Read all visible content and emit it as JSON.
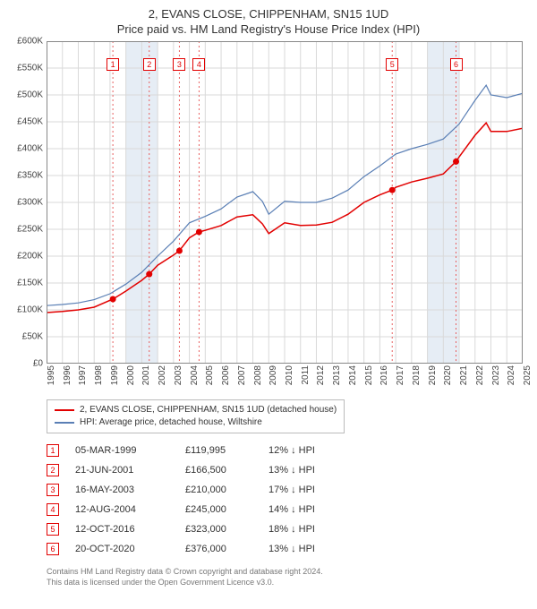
{
  "title_line1": "2, EVANS CLOSE, CHIPPENHAM, SN15 1UD",
  "title_line2": "Price paid vs. HM Land Registry's House Price Index (HPI)",
  "chart": {
    "type": "line",
    "x_min": 1995,
    "x_max": 2025,
    "y_min": 0,
    "y_max": 600000,
    "y_ticks": [
      0,
      50000,
      100000,
      150000,
      200000,
      250000,
      300000,
      350000,
      400000,
      450000,
      500000,
      550000,
      600000
    ],
    "y_tick_labels": [
      "£0",
      "£50K",
      "£100K",
      "£150K",
      "£200K",
      "£250K",
      "£300K",
      "£350K",
      "£400K",
      "£450K",
      "£500K",
      "£550K",
      "£600K"
    ],
    "x_ticks": [
      1995,
      1996,
      1997,
      1998,
      1999,
      2000,
      2001,
      2002,
      2003,
      2004,
      2005,
      2006,
      2007,
      2008,
      2009,
      2010,
      2011,
      2012,
      2013,
      2014,
      2015,
      2016,
      2017,
      2018,
      2019,
      2020,
      2021,
      2022,
      2023,
      2024,
      2025
    ],
    "background_color": "#ffffff",
    "grid_color": "#d9d9d9",
    "shaded_band_color": "#e6edf5",
    "shaded_bands": [
      [
        2000,
        2002
      ],
      [
        2019,
        2021
      ]
    ],
    "vline_color": "#e86060",
    "vline_dash": "2,3",
    "series_property": {
      "label": "2, EVANS CLOSE, CHIPPENHAM, SN15 1UD (detached house)",
      "color": "#e20000",
      "line_width": 1.5,
      "points": [
        [
          1995.0,
          95000
        ],
        [
          1996.0,
          97000
        ],
        [
          1997.0,
          100000
        ],
        [
          1998.0,
          105000
        ],
        [
          1999.18,
          119995
        ],
        [
          2000.0,
          135000
        ],
        [
          2001.0,
          155000
        ],
        [
          2001.47,
          166500
        ],
        [
          2002.0,
          183000
        ],
        [
          2003.0,
          202000
        ],
        [
          2003.37,
          210000
        ],
        [
          2004.0,
          234000
        ],
        [
          2004.61,
          245000
        ],
        [
          2005.0,
          248000
        ],
        [
          2006.0,
          257000
        ],
        [
          2007.0,
          273000
        ],
        [
          2008.0,
          277000
        ],
        [
          2008.6,
          260000
        ],
        [
          2009.0,
          242000
        ],
        [
          2010.0,
          262000
        ],
        [
          2011.0,
          257000
        ],
        [
          2012.0,
          258000
        ],
        [
          2013.0,
          263000
        ],
        [
          2014.0,
          278000
        ],
        [
          2015.0,
          300000
        ],
        [
          2016.0,
          314000
        ],
        [
          2016.78,
          323000
        ],
        [
          2017.0,
          328000
        ],
        [
          2018.0,
          338000
        ],
        [
          2019.0,
          345000
        ],
        [
          2020.0,
          353000
        ],
        [
          2020.8,
          376000
        ],
        [
          2021.0,
          385000
        ],
        [
          2022.0,
          425000
        ],
        [
          2022.7,
          448000
        ],
        [
          2023.0,
          432000
        ],
        [
          2024.0,
          432000
        ],
        [
          2025.0,
          438000
        ]
      ]
    },
    "series_hpi": {
      "label": "HPI: Average price, detached house, Wiltshire",
      "color": "#5a7fb5",
      "line_width": 1.2,
      "points": [
        [
          1995.0,
          108000
        ],
        [
          1996.0,
          110000
        ],
        [
          1997.0,
          113000
        ],
        [
          1998.0,
          119000
        ],
        [
          1999.0,
          130000
        ],
        [
          2000.0,
          148000
        ],
        [
          2001.0,
          170000
        ],
        [
          2002.0,
          200000
        ],
        [
          2003.0,
          228000
        ],
        [
          2004.0,
          262000
        ],
        [
          2005.0,
          274000
        ],
        [
          2006.0,
          288000
        ],
        [
          2007.0,
          310000
        ],
        [
          2008.0,
          320000
        ],
        [
          2008.6,
          302000
        ],
        [
          2009.0,
          278000
        ],
        [
          2010.0,
          302000
        ],
        [
          2011.0,
          300000
        ],
        [
          2012.0,
          300000
        ],
        [
          2013.0,
          308000
        ],
        [
          2014.0,
          323000
        ],
        [
          2015.0,
          348000
        ],
        [
          2016.0,
          368000
        ],
        [
          2017.0,
          390000
        ],
        [
          2018.0,
          400000
        ],
        [
          2019.0,
          408000
        ],
        [
          2020.0,
          418000
        ],
        [
          2021.0,
          446000
        ],
        [
          2022.0,
          490000
        ],
        [
          2022.7,
          518000
        ],
        [
          2023.0,
          500000
        ],
        [
          2024.0,
          495000
        ],
        [
          2025.0,
          503000
        ]
      ]
    },
    "sale_markers": [
      {
        "n": "1",
        "x": 1999.18,
        "y": 119995
      },
      {
        "n": "2",
        "x": 2001.47,
        "y": 166500
      },
      {
        "n": "3",
        "x": 2003.37,
        "y": 210000
      },
      {
        "n": "4",
        "x": 2004.61,
        "y": 245000
      },
      {
        "n": "5",
        "x": 2016.78,
        "y": 323000
      },
      {
        "n": "6",
        "x": 2020.8,
        "y": 376000
      }
    ],
    "marker_color": "#e20000",
    "marker_radius": 3.5,
    "badge_y_value": 556000
  },
  "legend": [
    {
      "color": "#e20000",
      "label": "2, EVANS CLOSE, CHIPPENHAM, SN15 1UD (detached house)"
    },
    {
      "color": "#5a7fb5",
      "label": "HPI: Average price, detached house, Wiltshire"
    }
  ],
  "sales_table": [
    {
      "n": "1",
      "date": "05-MAR-1999",
      "price": "£119,995",
      "pct": "12% ↓ HPI"
    },
    {
      "n": "2",
      "date": "21-JUN-2001",
      "price": "£166,500",
      "pct": "13% ↓ HPI"
    },
    {
      "n": "3",
      "date": "16-MAY-2003",
      "price": "£210,000",
      "pct": "17% ↓ HPI"
    },
    {
      "n": "4",
      "date": "12-AUG-2004",
      "price": "£245,000",
      "pct": "14% ↓ HPI"
    },
    {
      "n": "5",
      "date": "12-OCT-2016",
      "price": "£323,000",
      "pct": "18% ↓ HPI"
    },
    {
      "n": "6",
      "date": "20-OCT-2020",
      "price": "£376,000",
      "pct": "13% ↓ HPI"
    }
  ],
  "footer_line1": "Contains HM Land Registry data © Crown copyright and database right 2024.",
  "footer_line2": "This data is licensed under the Open Government Licence v3.0."
}
